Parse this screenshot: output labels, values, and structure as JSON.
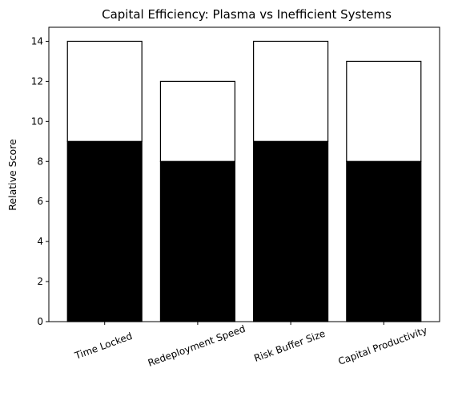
{
  "chart_data": {
    "type": "bar",
    "stacked": true,
    "title": "Capital Efficiency: Plasma vs Inefficient Systems",
    "xlabel": "",
    "ylabel": "Relative Score",
    "categories": [
      "Time Locked",
      "Redeployment Speed",
      "Risk Buffer Size",
      "Capital Productivity"
    ],
    "series": [
      {
        "values": [
          9,
          8,
          9,
          8
        ],
        "color": "#000000"
      },
      {
        "values": [
          5,
          4,
          5,
          5
        ],
        "color": "#ffffff"
      }
    ],
    "ylim": [
      0,
      14.7
    ],
    "yticks": [
      "0",
      "2",
      "4",
      "6",
      "8",
      "10",
      "12",
      "14"
    ],
    "grid": false,
    "legend": "none"
  }
}
